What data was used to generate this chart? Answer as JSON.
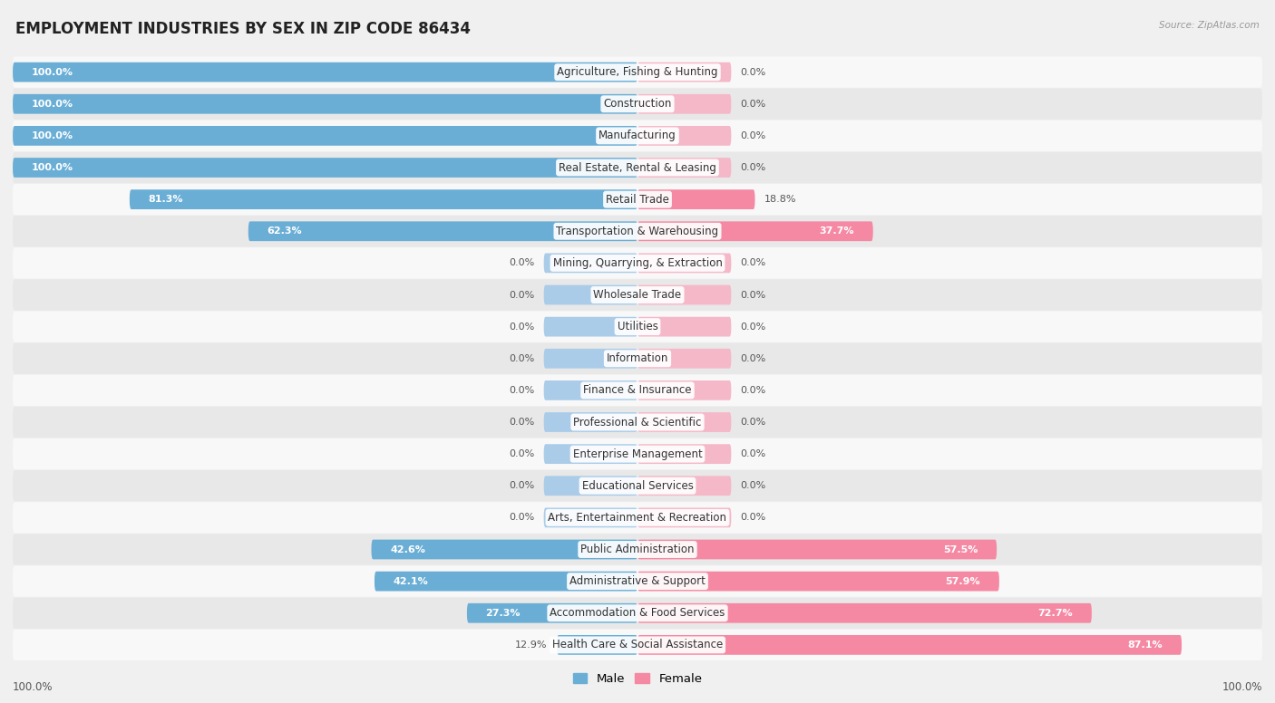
{
  "title": "EMPLOYMENT INDUSTRIES BY SEX IN ZIP CODE 86434",
  "source": "Source: ZipAtlas.com",
  "industries": [
    "Agriculture, Fishing & Hunting",
    "Construction",
    "Manufacturing",
    "Real Estate, Rental & Leasing",
    "Retail Trade",
    "Transportation & Warehousing",
    "Mining, Quarrying, & Extraction",
    "Wholesale Trade",
    "Utilities",
    "Information",
    "Finance & Insurance",
    "Professional & Scientific",
    "Enterprise Management",
    "Educational Services",
    "Arts, Entertainment & Recreation",
    "Public Administration",
    "Administrative & Support",
    "Accommodation & Food Services",
    "Health Care & Social Assistance"
  ],
  "male": [
    100.0,
    100.0,
    100.0,
    100.0,
    81.3,
    62.3,
    0.0,
    0.0,
    0.0,
    0.0,
    0.0,
    0.0,
    0.0,
    0.0,
    0.0,
    42.6,
    42.1,
    27.3,
    12.9
  ],
  "female": [
    0.0,
    0.0,
    0.0,
    0.0,
    18.8,
    37.7,
    0.0,
    0.0,
    0.0,
    0.0,
    0.0,
    0.0,
    0.0,
    0.0,
    0.0,
    57.5,
    57.9,
    72.7,
    87.1
  ],
  "male_color": "#6aaed6",
  "male_stub_color": "#aacce8",
  "female_color": "#f589a3",
  "female_stub_color": "#f5b8c8",
  "bg_color": "#f0f0f0",
  "row_color_odd": "#f8f8f8",
  "row_color_even": "#e8e8e8",
  "title_fontsize": 12,
  "label_fontsize": 8.5,
  "pct_fontsize": 8.0,
  "bar_height": 0.62,
  "stub_size": 15.0,
  "xlim_left": -100,
  "xlim_right": 100
}
